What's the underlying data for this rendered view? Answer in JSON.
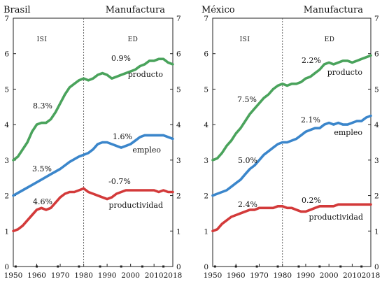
{
  "chart_data": [
    {
      "type": "line",
      "title": "Brasil",
      "subtitle": "Manufactura",
      "xlim": [
        1950,
        2018
      ],
      "ylim": [
        0,
        7
      ],
      "x_ticks": [
        "1950",
        "1960",
        "1970",
        "1980",
        "1990",
        "2000",
        "2010",
        "2018"
      ],
      "y_ticks": [
        "0",
        "1",
        "2",
        "3",
        "4",
        "5",
        "6",
        "7"
      ],
      "split_x": 1980,
      "periods": [
        "ISI",
        "ED"
      ],
      "series": [
        {
          "name": "producto",
          "color": "#4aa35c",
          "label_growth_isi": "8.3%",
          "label_growth_ed": "0.9%",
          "points": [
            [
              1950,
              3.0
            ],
            [
              1952,
              3.1
            ],
            [
              1954,
              3.3
            ],
            [
              1956,
              3.5
            ],
            [
              1958,
              3.8
            ],
            [
              1960,
              4.0
            ],
            [
              1962,
              4.05
            ],
            [
              1964,
              4.05
            ],
            [
              1966,
              4.15
            ],
            [
              1968,
              4.35
            ],
            [
              1970,
              4.6
            ],
            [
              1972,
              4.85
            ],
            [
              1974,
              5.05
            ],
            [
              1976,
              5.15
            ],
            [
              1978,
              5.25
            ],
            [
              1980,
              5.3
            ],
            [
              1982,
              5.25
            ],
            [
              1984,
              5.3
            ],
            [
              1986,
              5.4
            ],
            [
              1988,
              5.45
            ],
            [
              1990,
              5.4
            ],
            [
              1992,
              5.3
            ],
            [
              1994,
              5.35
            ],
            [
              1996,
              5.4
            ],
            [
              1998,
              5.45
            ],
            [
              2000,
              5.5
            ],
            [
              2002,
              5.55
            ],
            [
              2004,
              5.65
            ],
            [
              2006,
              5.7
            ],
            [
              2008,
              5.8
            ],
            [
              2010,
              5.8
            ],
            [
              2012,
              5.85
            ],
            [
              2014,
              5.85
            ],
            [
              2016,
              5.75
            ],
            [
              2018,
              5.7
            ]
          ]
        },
        {
          "name": "empleo",
          "color": "#3b86cb",
          "label_growth_isi": "3.5%",
          "label_growth_ed": "1.6%",
          "points": [
            [
              1950,
              2.0
            ],
            [
              1954,
              2.15
            ],
            [
              1958,
              2.3
            ],
            [
              1962,
              2.45
            ],
            [
              1966,
              2.6
            ],
            [
              1970,
              2.75
            ],
            [
              1974,
              2.95
            ],
            [
              1978,
              3.1
            ],
            [
              1980,
              3.15
            ],
            [
              1982,
              3.2
            ],
            [
              1984,
              3.3
            ],
            [
              1986,
              3.45
            ],
            [
              1988,
              3.5
            ],
            [
              1990,
              3.5
            ],
            [
              1992,
              3.45
            ],
            [
              1994,
              3.4
            ],
            [
              1996,
              3.35
            ],
            [
              1998,
              3.4
            ],
            [
              2000,
              3.45
            ],
            [
              2002,
              3.55
            ],
            [
              2004,
              3.65
            ],
            [
              2006,
              3.7
            ],
            [
              2008,
              3.7
            ],
            [
              2010,
              3.7
            ],
            [
              2012,
              3.7
            ],
            [
              2014,
              3.7
            ],
            [
              2016,
              3.65
            ],
            [
              2018,
              3.6
            ]
          ]
        },
        {
          "name": "productividad",
          "color": "#d33a3a",
          "label_growth_isi": "4.6%",
          "label_growth_ed": "-0.7%",
          "points": [
            [
              1950,
              1.0
            ],
            [
              1952,
              1.05
            ],
            [
              1954,
              1.15
            ],
            [
              1956,
              1.3
            ],
            [
              1958,
              1.45
            ],
            [
              1960,
              1.6
            ],
            [
              1962,
              1.65
            ],
            [
              1964,
              1.6
            ],
            [
              1966,
              1.65
            ],
            [
              1968,
              1.8
            ],
            [
              1970,
              1.95
            ],
            [
              1972,
              2.05
            ],
            [
              1974,
              2.1
            ],
            [
              1976,
              2.1
            ],
            [
              1978,
              2.15
            ],
            [
              1980,
              2.2
            ],
            [
              1982,
              2.1
            ],
            [
              1984,
              2.05
            ],
            [
              1986,
              2.0
            ],
            [
              1988,
              1.95
            ],
            [
              1990,
              1.9
            ],
            [
              1992,
              1.95
            ],
            [
              1994,
              2.05
            ],
            [
              1996,
              2.1
            ],
            [
              1998,
              2.15
            ],
            [
              2000,
              2.15
            ],
            [
              2002,
              2.15
            ],
            [
              2004,
              2.15
            ],
            [
              2006,
              2.15
            ],
            [
              2008,
              2.15
            ],
            [
              2010,
              2.15
            ],
            [
              2012,
              2.1
            ],
            [
              2014,
              2.15
            ],
            [
              2016,
              2.1
            ],
            [
              2018,
              2.1
            ]
          ]
        }
      ]
    },
    {
      "type": "line",
      "title": "México",
      "subtitle": "Manufactura",
      "xlim": [
        1950,
        2018
      ],
      "ylim": [
        0,
        7
      ],
      "x_ticks": [
        "1950",
        "1960",
        "1970",
        "1980",
        "1990",
        "2000",
        "2010",
        "2018"
      ],
      "y_ticks": [
        "0",
        "1",
        "2",
        "3",
        "4",
        "5",
        "6",
        "7"
      ],
      "split_x": 1980,
      "periods": [
        "ISI",
        "ED"
      ],
      "series": [
        {
          "name": "producto",
          "color": "#4aa35c",
          "label_growth_isi": "7.5%",
          "label_growth_ed": "2.2%",
          "points": [
            [
              1950,
              3.0
            ],
            [
              1952,
              3.05
            ],
            [
              1954,
              3.2
            ],
            [
              1956,
              3.4
            ],
            [
              1958,
              3.55
            ],
            [
              1960,
              3.75
            ],
            [
              1962,
              3.9
            ],
            [
              1964,
              4.1
            ],
            [
              1966,
              4.3
            ],
            [
              1968,
              4.45
            ],
            [
              1970,
              4.6
            ],
            [
              1972,
              4.75
            ],
            [
              1974,
              4.85
            ],
            [
              1976,
              5.0
            ],
            [
              1978,
              5.1
            ],
            [
              1980,
              5.15
            ],
            [
              1982,
              5.1
            ],
            [
              1984,
              5.15
            ],
            [
              1986,
              5.15
            ],
            [
              1988,
              5.2
            ],
            [
              1990,
              5.3
            ],
            [
              1992,
              5.35
            ],
            [
              1994,
              5.45
            ],
            [
              1996,
              5.55
            ],
            [
              1998,
              5.7
            ],
            [
              2000,
              5.75
            ],
            [
              2002,
              5.7
            ],
            [
              2004,
              5.75
            ],
            [
              2006,
              5.8
            ],
            [
              2008,
              5.8
            ],
            [
              2010,
              5.75
            ],
            [
              2012,
              5.8
            ],
            [
              2014,
              5.85
            ],
            [
              2016,
              5.9
            ],
            [
              2018,
              5.95
            ]
          ]
        },
        {
          "name": "empleo",
          "color": "#3b86cb",
          "label_growth_isi": "5.0%",
          "label_growth_ed": "2.1%",
          "points": [
            [
              1950,
              2.0
            ],
            [
              1952,
              2.05
            ],
            [
              1954,
              2.1
            ],
            [
              1956,
              2.15
            ],
            [
              1958,
              2.25
            ],
            [
              1960,
              2.35
            ],
            [
              1962,
              2.45
            ],
            [
              1964,
              2.6
            ],
            [
              1966,
              2.75
            ],
            [
              1968,
              2.85
            ],
            [
              1970,
              3.0
            ],
            [
              1972,
              3.15
            ],
            [
              1974,
              3.25
            ],
            [
              1976,
              3.35
            ],
            [
              1978,
              3.45
            ],
            [
              1980,
              3.5
            ],
            [
              1982,
              3.5
            ],
            [
              1984,
              3.55
            ],
            [
              1986,
              3.6
            ],
            [
              1988,
              3.7
            ],
            [
              1990,
              3.8
            ],
            [
              1992,
              3.85
            ],
            [
              1994,
              3.9
            ],
            [
              1996,
              3.9
            ],
            [
              1998,
              4.0
            ],
            [
              2000,
              4.05
            ],
            [
              2002,
              4.0
            ],
            [
              2004,
              4.05
            ],
            [
              2006,
              4.0
            ],
            [
              2008,
              4.0
            ],
            [
              2010,
              4.05
            ],
            [
              2012,
              4.1
            ],
            [
              2014,
              4.1
            ],
            [
              2016,
              4.2
            ],
            [
              2018,
              4.25
            ]
          ]
        },
        {
          "name": "productividad",
          "color": "#d33a3a",
          "label_growth_isi": "2.4%",
          "label_growth_ed": "0.2%",
          "points": [
            [
              1950,
              1.0
            ],
            [
              1952,
              1.05
            ],
            [
              1954,
              1.2
            ],
            [
              1956,
              1.3
            ],
            [
              1958,
              1.4
            ],
            [
              1960,
              1.45
            ],
            [
              1962,
              1.5
            ],
            [
              1964,
              1.55
            ],
            [
              1966,
              1.6
            ],
            [
              1968,
              1.6
            ],
            [
              1970,
              1.65
            ],
            [
              1972,
              1.65
            ],
            [
              1974,
              1.65
            ],
            [
              1976,
              1.65
            ],
            [
              1978,
              1.7
            ],
            [
              1980,
              1.7
            ],
            [
              1982,
              1.65
            ],
            [
              1984,
              1.65
            ],
            [
              1986,
              1.6
            ],
            [
              1988,
              1.55
            ],
            [
              1990,
              1.55
            ],
            [
              1992,
              1.6
            ],
            [
              1994,
              1.65
            ],
            [
              1996,
              1.7
            ],
            [
              1998,
              1.7
            ],
            [
              2000,
              1.7
            ],
            [
              2002,
              1.7
            ],
            [
              2004,
              1.75
            ],
            [
              2006,
              1.75
            ],
            [
              2008,
              1.75
            ],
            [
              2010,
              1.75
            ],
            [
              2012,
              1.75
            ],
            [
              2014,
              1.75
            ],
            [
              2016,
              1.75
            ],
            [
              2018,
              1.75
            ]
          ]
        }
      ]
    }
  ]
}
